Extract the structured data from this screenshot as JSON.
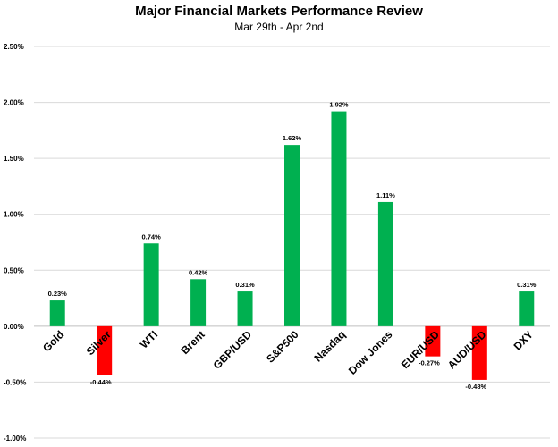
{
  "chart_data": {
    "type": "bar",
    "title": "Major Financial Markets Performance Review",
    "subtitle": "Mar 29th - Apr 2nd",
    "categories": [
      "Gold",
      "Silver",
      "WTI",
      "Brent",
      "GBP/USD",
      "S&P500",
      "Nasdaq",
      "Dow Jones",
      "EUR/USD",
      "AUD/USD",
      "DXY"
    ],
    "values": [
      0.23,
      -0.44,
      0.74,
      0.42,
      0.31,
      1.62,
      1.92,
      1.11,
      -0.27,
      -0.48,
      0.31
    ],
    "data_labels": [
      "0.23%",
      "-0.44%",
      "0.74%",
      "0.42%",
      "0.31%",
      "1.62%",
      "1.92%",
      "1.11%",
      "-0.27%",
      "-0.48%",
      "0.31%"
    ],
    "ylim": [
      -1.0,
      2.5
    ],
    "yticks": [
      2.5,
      2.0,
      1.5,
      1.0,
      0.5,
      0.0,
      -0.5,
      -1.0
    ],
    "ytick_labels": [
      "2.50%",
      "2.00%",
      "1.50%",
      "1.00%",
      "0.50%",
      "0.00%",
      "-0.50%",
      "-1.00%"
    ],
    "grid": true,
    "colors": {
      "positive": "#00b050",
      "negative": "#ff0000"
    }
  }
}
